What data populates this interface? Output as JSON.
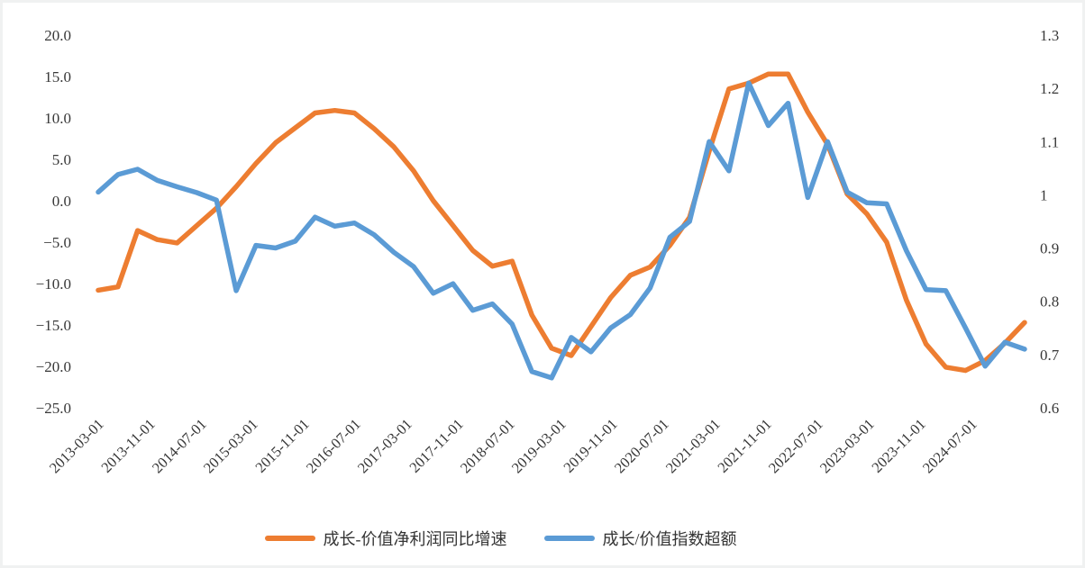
{
  "chart_data": {
    "type": "line",
    "title": "",
    "grid": false,
    "legend_position": "bottom",
    "x_quarters": [
      "2013-03",
      "2013-06",
      "2013-09",
      "2013-12",
      "2014-03",
      "2014-06",
      "2014-09",
      "2014-12",
      "2015-03",
      "2015-06",
      "2015-09",
      "2015-12",
      "2016-03",
      "2016-06",
      "2016-09",
      "2016-12",
      "2017-03",
      "2017-06",
      "2017-09",
      "2017-12",
      "2018-03",
      "2018-06",
      "2018-09",
      "2018-12",
      "2019-03",
      "2019-06",
      "2019-09",
      "2019-12",
      "2020-03",
      "2020-06",
      "2020-09",
      "2020-12",
      "2021-03",
      "2021-06",
      "2021-09",
      "2021-12",
      "2022-03",
      "2022-06",
      "2022-09",
      "2022-12",
      "2023-03",
      "2023-06",
      "2023-09",
      "2023-12",
      "2024-03",
      "2024-06",
      "2024-09",
      "2024-12"
    ],
    "x_tick_labels": [
      "2013-03-01",
      "2013-11-01",
      "2014-07-01",
      "2015-03-01",
      "2015-11-01",
      "2016-07-01",
      "2017-03-01",
      "2017-11-01",
      "2018-07-01",
      "2019-03-01",
      "2019-11-01",
      "2020-07-01",
      "2021-03-01",
      "2021-11-01",
      "2022-07-01",
      "2023-03-01",
      "2023-11-01",
      "2024-07-01"
    ],
    "left_axis": {
      "range": [
        -25,
        20
      ],
      "ticks": [
        {
          "label": "20.0",
          "value": 20
        },
        {
          "label": "15.0",
          "value": 15
        },
        {
          "label": "10.0",
          "value": 10
        },
        {
          "label": "5.0",
          "value": 5
        },
        {
          "label": "0.0",
          "value": 0
        },
        {
          "label": "−5.0",
          "value": -5
        },
        {
          "label": "−10.0",
          "value": -10
        },
        {
          "label": "−15.0",
          "value": -15
        },
        {
          "label": "−20.0",
          "value": -20
        },
        {
          "label": "−25.0",
          "value": -25
        }
      ]
    },
    "right_axis": {
      "range": [
        0.6,
        1.3
      ],
      "ticks": [
        {
          "label": "1.3",
          "value": 1.3
        },
        {
          "label": "1.2",
          "value": 1.2
        },
        {
          "label": "1.1",
          "value": 1.1
        },
        {
          "label": "1",
          "value": 1.0
        },
        {
          "label": "0.9",
          "value": 0.9
        },
        {
          "label": "0.8",
          "value": 0.8
        },
        {
          "label": "0.7",
          "value": 0.7
        },
        {
          "label": "0.6",
          "value": 0.6
        }
      ]
    },
    "series": [
      {
        "name": "成长-价值净利润同比增速",
        "axis": "left",
        "color": "#ED7D31",
        "values": [
          -10.8,
          -10.4,
          -3.6,
          -4.7,
          -5.1,
          -3.0,
          -0.9,
          1.7,
          4.5,
          7.0,
          8.8,
          10.6,
          10.9,
          10.6,
          8.7,
          6.5,
          3.6,
          0.0,
          -3.0,
          -6.0,
          -7.9,
          -7.3,
          -13.8,
          -17.8,
          -18.7,
          -15.2,
          -11.7,
          -9.0,
          -8.0,
          -5.4,
          -2.0,
          6.0,
          13.5,
          14.2,
          15.3,
          15.3,
          10.7,
          6.8,
          0.8,
          -1.6,
          -5.0,
          -12.0,
          -17.3,
          -20.1,
          -20.5,
          -19.3,
          -17.2,
          -14.7
        ]
      },
      {
        "name": "成长/价值指数超额",
        "axis": "right",
        "color": "#5B9BD5",
        "values": [
          1.005,
          1.038,
          1.048,
          1.027,
          1.015,
          1.004,
          0.99,
          0.82,
          0.905,
          0.9,
          0.913,
          0.958,
          0.941,
          0.947,
          0.925,
          0.892,
          0.865,
          0.815,
          0.833,
          0.783,
          0.795,
          0.757,
          0.668,
          0.656,
          0.732,
          0.705,
          0.75,
          0.775,
          0.825,
          0.92,
          0.95,
          1.1,
          1.045,
          1.21,
          1.13,
          1.172,
          0.995,
          1.1,
          1.005,
          0.985,
          0.983,
          0.895,
          0.822,
          0.82,
          0.75,
          0.678,
          0.723,
          0.71
        ]
      }
    ]
  },
  "legend": {
    "items": [
      {
        "label": "成长-价值净利润同比增速",
        "color": "#ED7D31"
      },
      {
        "label": "成长/价值指数超额",
        "color": "#5B9BD5"
      }
    ]
  }
}
